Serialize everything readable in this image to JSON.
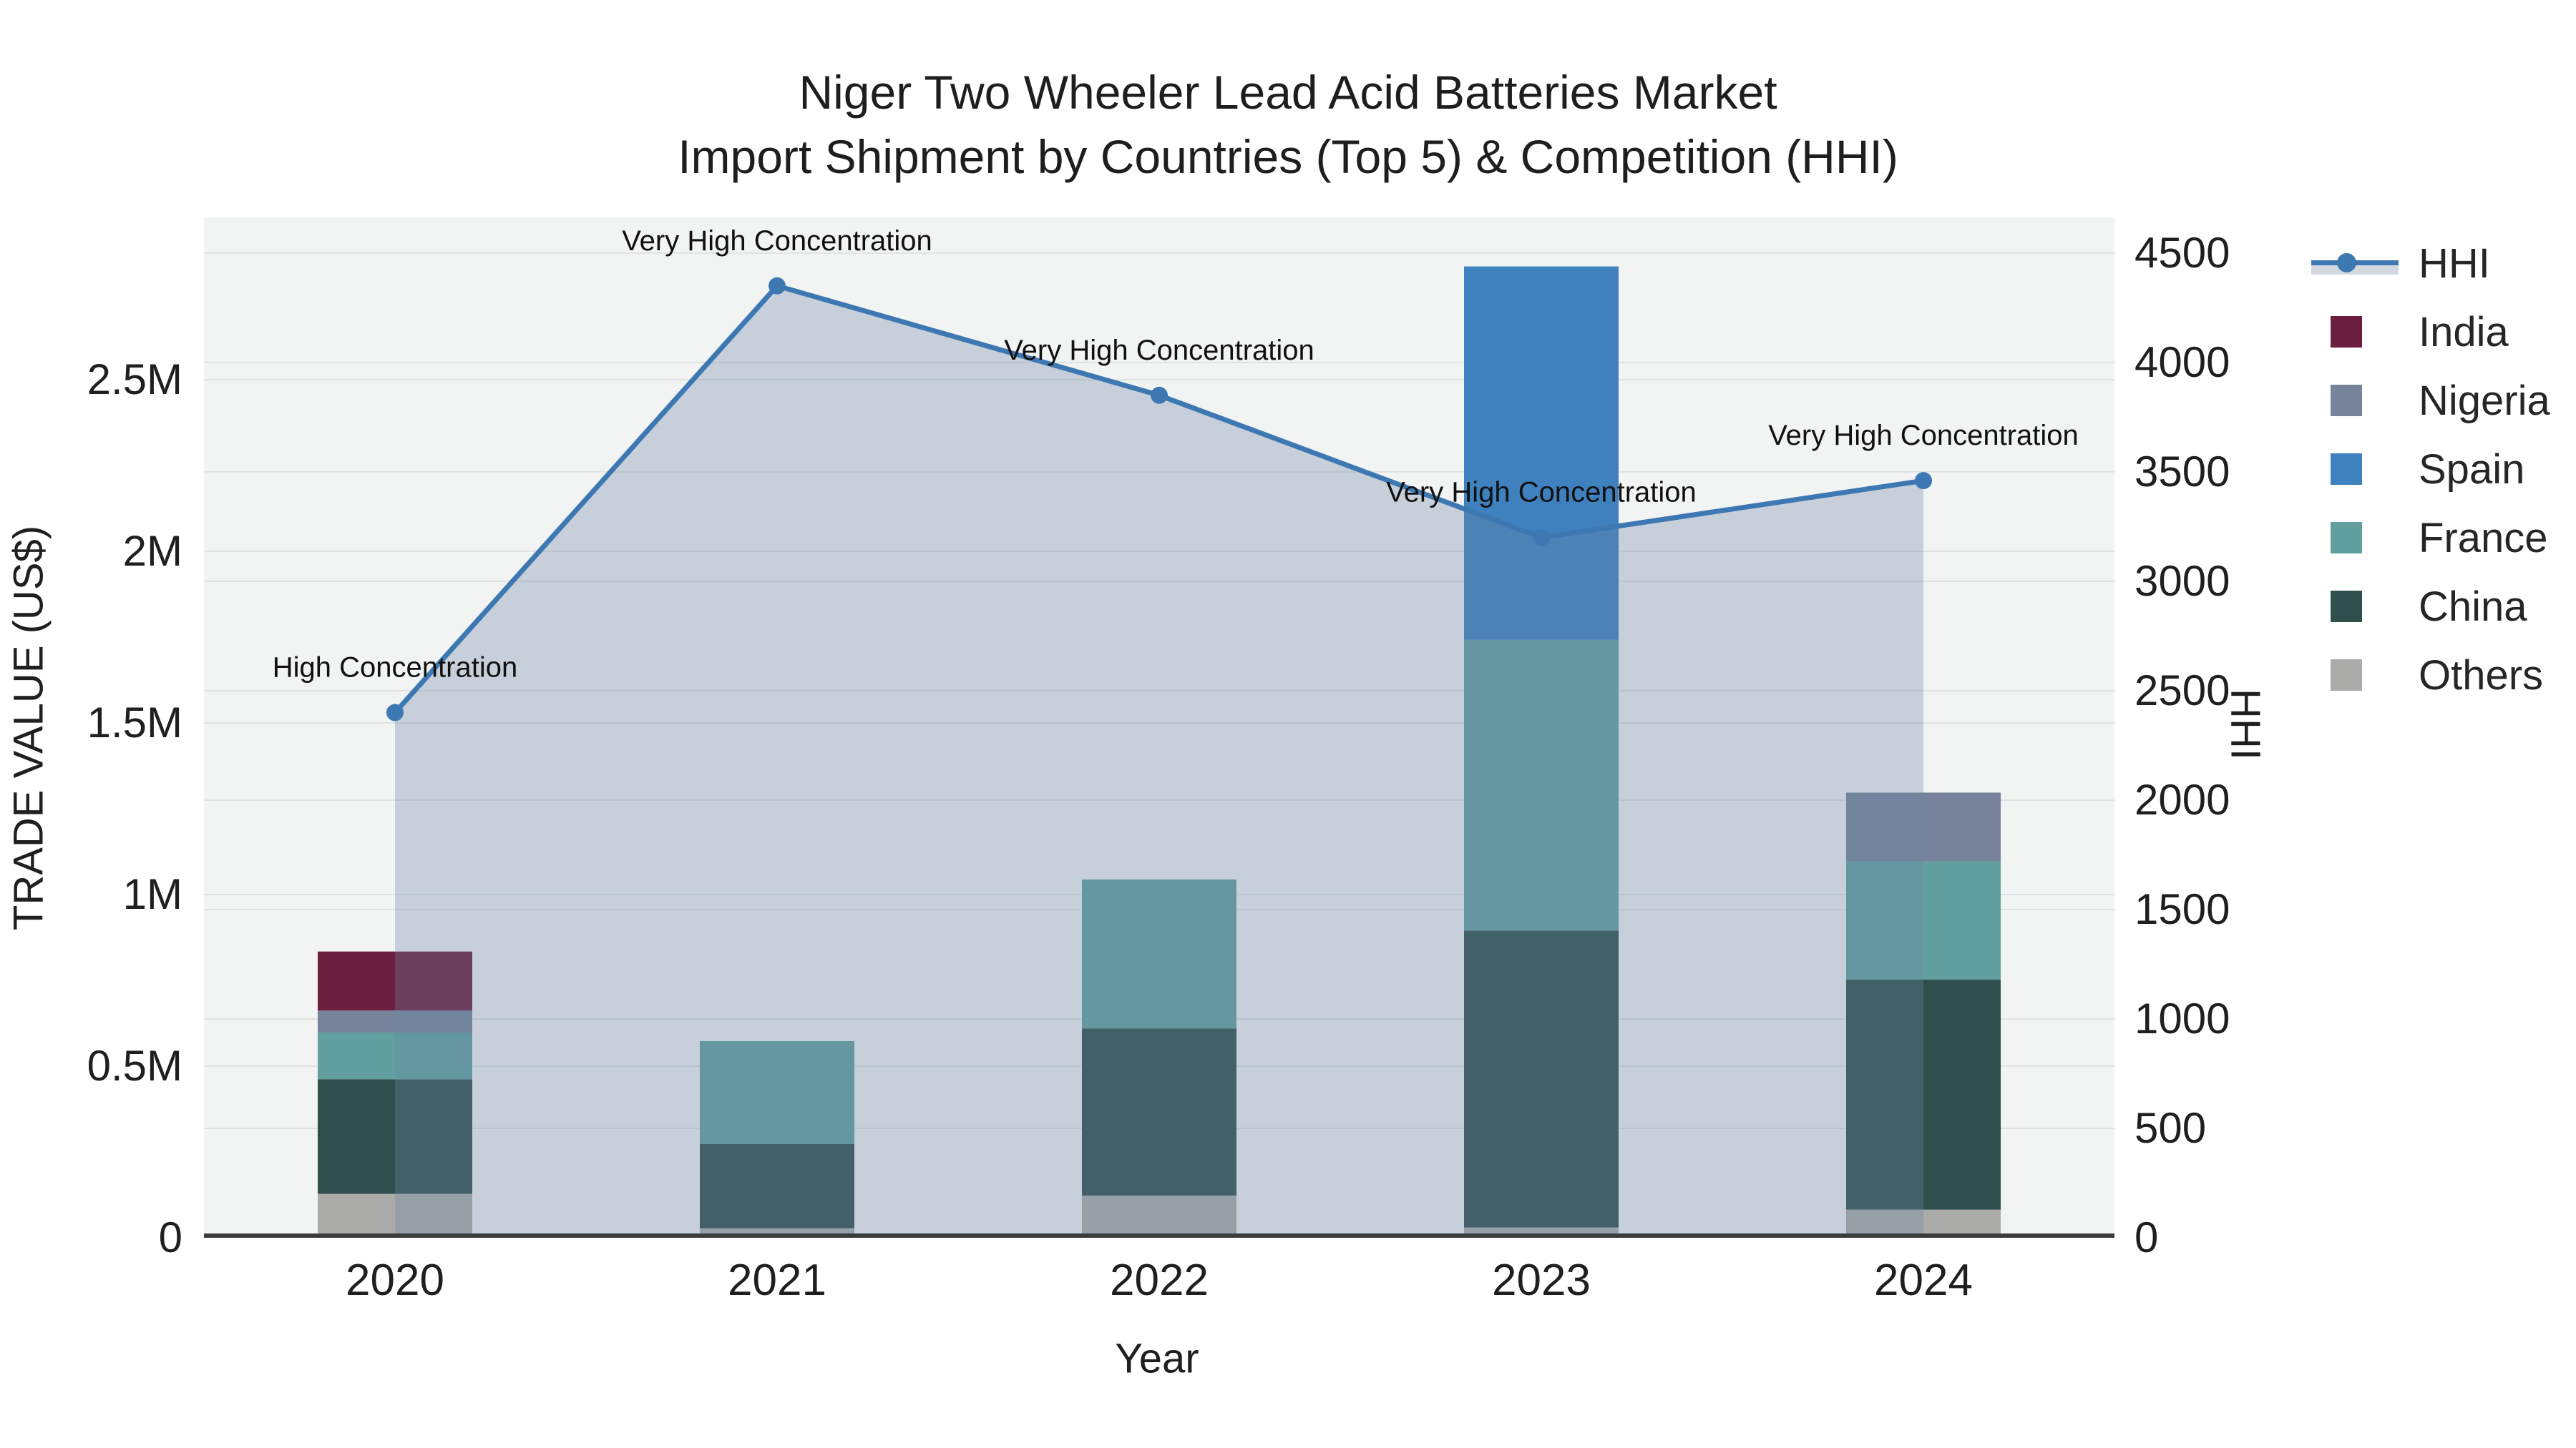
{
  "title": {
    "line1": "Niger Two Wheeler Lead Acid Batteries Market",
    "line2": "Import Shipment by Countries (Top 5) & Competition (HHI)"
  },
  "axes": {
    "x": {
      "title": "Year",
      "ticks": [
        "2020",
        "2021",
        "2022",
        "2023",
        "2024"
      ]
    },
    "left": {
      "title": "TRADE VALUE (US$)",
      "ticks": [
        "0",
        "0.5M",
        "1M",
        "1.5M",
        "2M",
        "2.5M"
      ]
    },
    "right": {
      "title": "HHI",
      "ticks": [
        "0",
        "500",
        "1000",
        "1500",
        "2000",
        "2500",
        "3000",
        "3500",
        "4000",
        "4500"
      ]
    }
  },
  "legend": [
    {
      "label": "HHI",
      "type": "line",
      "color": "#3E78B2"
    },
    {
      "label": "India",
      "type": "swatch",
      "color": "#6C1E3E"
    },
    {
      "label": "Nigeria",
      "type": "swatch",
      "color": "#76839A"
    },
    {
      "label": "Spain",
      "type": "swatch",
      "color": "#3F80BE"
    },
    {
      "label": "France",
      "type": "swatch",
      "color": "#62A0A0"
    },
    {
      "label": "China",
      "type": "swatch",
      "color": "#2F4F4C"
    },
    {
      "label": "Others",
      "type": "swatch",
      "color": "#ABABA9"
    }
  ],
  "annotations": [
    {
      "year": "2020",
      "text": "High Concentration"
    },
    {
      "year": "2021",
      "text": "Very High Concentration"
    },
    {
      "year": "2022",
      "text": "Very High Concentration"
    },
    {
      "year": "2023",
      "text": "Very High Concentration"
    },
    {
      "year": "2024",
      "text": "Very High Concentration"
    }
  ],
  "chart_data": {
    "type": "combo-stacked-bar-plus-line",
    "categories": [
      "2020",
      "2021",
      "2022",
      "2023",
      "2024"
    ],
    "series": [
      {
        "name": "India",
        "type": "bar",
        "color": "#6C1E3E",
        "values": [
          172000,
          0,
          0,
          0,
          0
        ]
      },
      {
        "name": "Nigeria",
        "type": "bar",
        "color": "#76839A",
        "values": [
          64000,
          0,
          0,
          0,
          200000
        ]
      },
      {
        "name": "Spain",
        "type": "bar",
        "color": "#3F80BE",
        "values": [
          0,
          0,
          0,
          1088000,
          0
        ]
      },
      {
        "name": "France",
        "type": "bar",
        "color": "#62A0A0",
        "values": [
          136000,
          300000,
          434000,
          847000,
          345000
        ]
      },
      {
        "name": "China",
        "type": "bar",
        "color": "#2F4F4C",
        "values": [
          334000,
          245000,
          487000,
          865000,
          670000
        ]
      },
      {
        "name": "Others",
        "type": "bar",
        "color": "#ABABA9",
        "values": [
          128000,
          28000,
          123000,
          30000,
          82000
        ]
      }
    ],
    "stack_order_bottom_to_top": [
      "Others",
      "China",
      "France",
      "Spain",
      "Nigeria",
      "India"
    ],
    "hhi_line": {
      "name": "HHI",
      "type": "line+area",
      "color": "#3E78B2",
      "area_fill": "rgba(110,133,166,0.32)",
      "values": [
        2400,
        4350,
        3850,
        3200,
        3460
      ]
    },
    "xlabel": "Year",
    "ylabel_left": "TRADE VALUE (US$)",
    "ylabel_right": "HHI",
    "ylim_left": [
      0,
      2973000
    ],
    "ylim_right": [
      0,
      4663
    ],
    "grid_step_left": 500000,
    "grid_step_right": 500,
    "grid_on": true,
    "legend_position": "right"
  },
  "colors": {
    "plot_background": "#f2f3f3",
    "figure_background": "#ffffff",
    "gridline": "#e0e3e4",
    "axis_line": "#3b3b3b",
    "text": "#1f1f1f"
  }
}
